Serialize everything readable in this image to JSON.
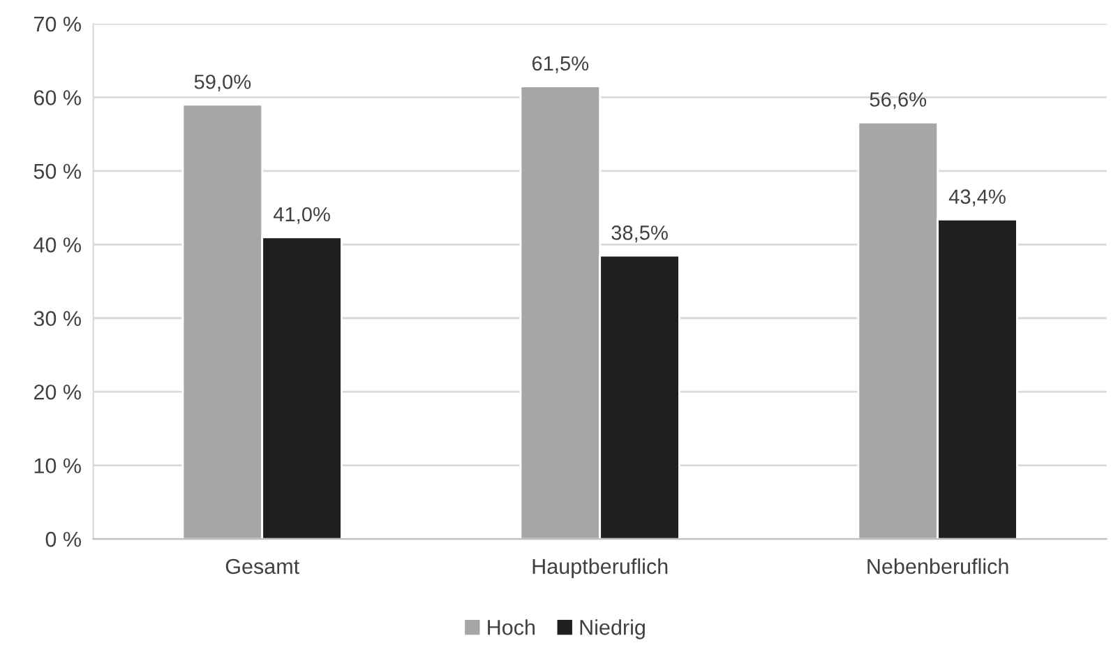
{
  "chart_data": {
    "type": "bar",
    "categories": [
      "Gesamt",
      "Hauptberuflich",
      "Nebenberuflich"
    ],
    "series": [
      {
        "name": "Hoch",
        "color": "#a6a6a6",
        "values": [
          59.0,
          61.5,
          56.6
        ],
        "value_labels": [
          "59,0%",
          "61,5%",
          "56,6%"
        ]
      },
      {
        "name": "Niedrig",
        "color": "#1f1f1f",
        "values": [
          41.0,
          38.5,
          43.4
        ],
        "value_labels": [
          "41,0%",
          "38,5%",
          "43,4%"
        ]
      }
    ],
    "ylim": [
      0,
      70
    ],
    "yticks": [
      {
        "value": 0,
        "label": "0 %"
      },
      {
        "value": 10,
        "label": "10 %"
      },
      {
        "value": 20,
        "label": "20 %"
      },
      {
        "value": 30,
        "label": "30 %"
      },
      {
        "value": 40,
        "label": "40 %"
      },
      {
        "value": 50,
        "label": "50 %"
      },
      {
        "value": 60,
        "label": "60 %"
      },
      {
        "value": 70,
        "label": "70 %"
      }
    ],
    "grid": "y",
    "legend": "bottom"
  }
}
